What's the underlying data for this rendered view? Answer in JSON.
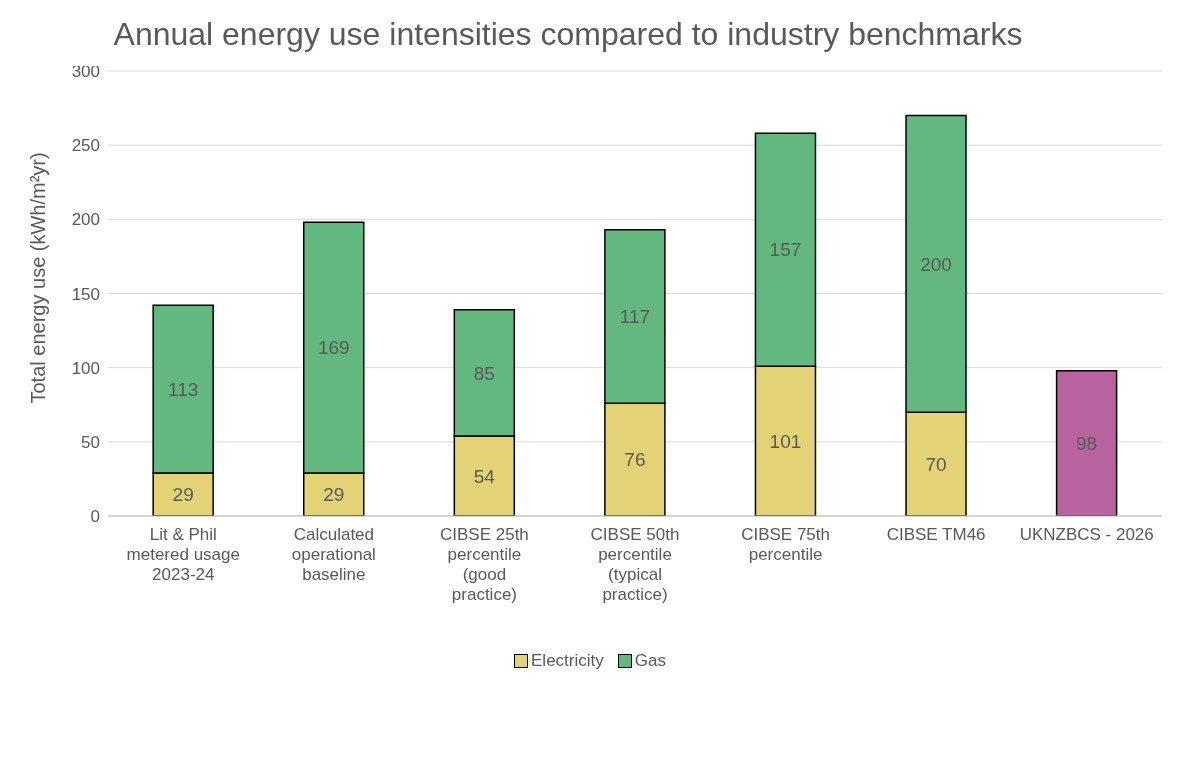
{
  "chart_data": {
    "type": "bar",
    "title": "Annual energy use intensities compared to industry benchmarks",
    "ylabel": "Total energy use (kWh/m²yr)",
    "categories": [
      "Lit & Phil metered usage 2023-24",
      "Calculated operational baseline",
      "CIBSE 25th percentile (good practice)",
      "CIBSE 50th percentile (typical practice)",
      "CIBSE 75th percentile",
      "CIBSE TM46",
      "UKNZBCS - 2026"
    ],
    "series": [
      {
        "name": "Electricity",
        "color": "#e3d276",
        "values": [
          29,
          29,
          54,
          76,
          101,
          70,
          null
        ]
      },
      {
        "name": "Gas",
        "color": "#62b87f",
        "values": [
          113,
          169,
          85,
          117,
          157,
          200,
          null
        ]
      },
      {
        "color": "#b8639f",
        "values": [
          null,
          null,
          null,
          null,
          null,
          null,
          98
        ]
      }
    ],
    "stacked": true,
    "data_labels": true,
    "ylim": [
      0,
      300
    ],
    "yticks": [
      0,
      50,
      100,
      150,
      200,
      250,
      300
    ],
    "grid": "y",
    "legend": "bottom"
  }
}
